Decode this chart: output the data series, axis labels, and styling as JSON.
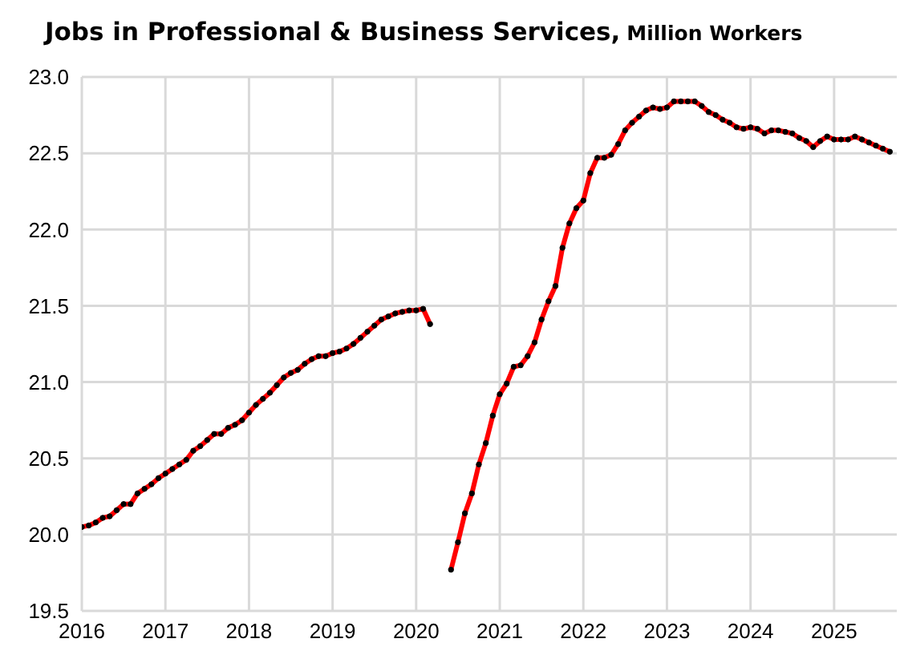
{
  "chart_data": {
    "type": "line",
    "title": "Jobs in Professional & Business Services,",
    "subtitle": "Million Workers",
    "x": [
      "2016-01",
      "2016-02",
      "2016-03",
      "2016-04",
      "2016-05",
      "2016-06",
      "2016-07",
      "2016-08",
      "2016-09",
      "2016-10",
      "2016-11",
      "2016-12",
      "2017-01",
      "2017-02",
      "2017-03",
      "2017-04",
      "2017-05",
      "2017-06",
      "2017-07",
      "2017-08",
      "2017-09",
      "2017-10",
      "2017-11",
      "2017-12",
      "2018-01",
      "2018-02",
      "2018-03",
      "2018-04",
      "2018-05",
      "2018-06",
      "2018-07",
      "2018-08",
      "2018-09",
      "2018-10",
      "2018-11",
      "2018-12",
      "2019-01",
      "2019-02",
      "2019-03",
      "2019-04",
      "2019-05",
      "2019-06",
      "2019-07",
      "2019-08",
      "2019-09",
      "2019-10",
      "2019-11",
      "2019-12",
      "2020-01",
      "2020-02",
      "2020-03",
      "2020-04",
      "2020-05",
      "2020-06",
      "2020-07",
      "2020-08",
      "2020-09",
      "2020-10",
      "2020-11",
      "2020-12",
      "2021-01",
      "2021-02",
      "2021-03",
      "2021-04",
      "2021-05",
      "2021-06",
      "2021-07",
      "2021-08",
      "2021-09",
      "2021-10",
      "2021-11",
      "2021-12",
      "2022-01",
      "2022-02",
      "2022-03",
      "2022-04",
      "2022-05",
      "2022-06",
      "2022-07",
      "2022-08",
      "2022-09",
      "2022-10",
      "2022-11",
      "2022-12",
      "2023-01",
      "2023-02",
      "2023-03",
      "2023-04",
      "2023-05",
      "2023-06",
      "2023-07",
      "2023-08",
      "2023-09",
      "2023-10",
      "2023-11",
      "2023-12",
      "2024-01",
      "2024-02",
      "2024-03",
      "2024-04",
      "2024-05",
      "2024-06",
      "2024-07",
      "2024-08",
      "2024-09",
      "2024-10",
      "2024-11",
      "2024-12",
      "2025-01",
      "2025-02",
      "2025-03",
      "2025-04",
      "2025-05",
      "2025-06",
      "2025-07",
      "2025-08",
      "2025-09"
    ],
    "series": [
      {
        "color": "#ff0000",
        "values": [
          20.05,
          20.06,
          20.08,
          20.11,
          20.12,
          20.16,
          20.2,
          20.2,
          20.27,
          20.3,
          20.33,
          20.37,
          20.4,
          20.43,
          20.46,
          20.49,
          20.55,
          20.58,
          20.62,
          20.66,
          20.66,
          20.7,
          20.72,
          20.75,
          20.8,
          20.85,
          20.89,
          20.93,
          20.98,
          21.03,
          21.06,
          21.08,
          21.12,
          21.15,
          21.17,
          21.17,
          21.19,
          21.2,
          21.22,
          21.25,
          21.29,
          21.33,
          21.37,
          21.41,
          21.43,
          21.45,
          21.46,
          21.47,
          21.47,
          21.48,
          21.38,
          null,
          null,
          19.77,
          19.95,
          20.14,
          20.27,
          20.46,
          20.6,
          20.78,
          20.92,
          20.99,
          21.1,
          21.11,
          21.17,
          21.26,
          21.41,
          21.53,
          21.63,
          21.88,
          22.04,
          22.14,
          22.19,
          22.37,
          22.47,
          22.47,
          22.49,
          22.56,
          22.65,
          22.7,
          22.74,
          22.78,
          22.8,
          22.79,
          22.8,
          22.84,
          22.84,
          22.84,
          22.84,
          22.81,
          22.77,
          22.75,
          22.72,
          22.7,
          22.67,
          22.66,
          22.67,
          22.66,
          22.63,
          22.65,
          22.65,
          22.64,
          22.63,
          22.6,
          22.58,
          22.54,
          22.58,
          22.61,
          22.59,
          22.59,
          22.59,
          22.61,
          22.59,
          22.57,
          22.55,
          22.53,
          22.51
        ]
      }
    ],
    "xlim": [
      "2016-01",
      "2025-10"
    ],
    "xticks": [
      "2016",
      "2017",
      "2018",
      "2019",
      "2020",
      "2021",
      "2022",
      "2023",
      "2024",
      "2025"
    ],
    "ylim": [
      19.5,
      23.0
    ],
    "yticks": [
      {
        "value": 19.5,
        "label": "19.5"
      },
      {
        "value": 20,
        "label": "20.0"
      },
      {
        "value": 20.5,
        "label": "20.5"
      },
      {
        "value": 21,
        "label": "21.0"
      },
      {
        "value": 21.5,
        "label": "21.5"
      },
      {
        "value": 22,
        "label": "22.0"
      },
      {
        "value": 22.5,
        "label": "22.5"
      },
      {
        "value": 23,
        "label": "23.0"
      }
    ],
    "grid": true,
    "legend": false,
    "marker": "circle",
    "line_style": "solid"
  }
}
